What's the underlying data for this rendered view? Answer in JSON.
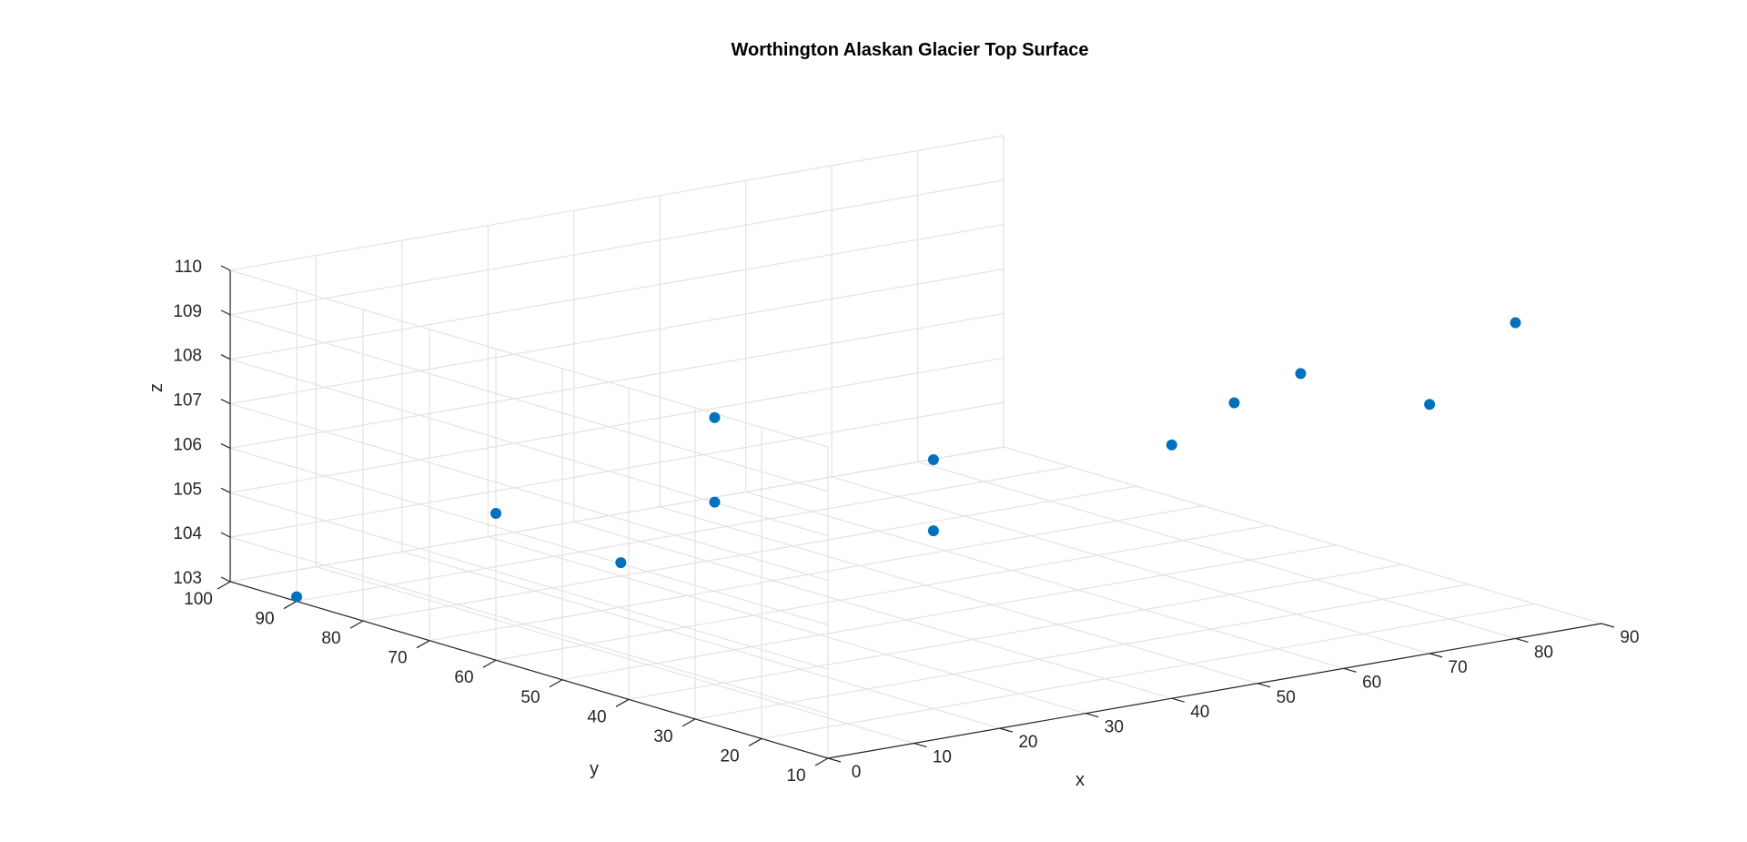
{
  "chart_data": {
    "type": "scatter3d",
    "title": "Worthington Alaskan Glacier Top Surface",
    "xlabel": "x",
    "ylabel": "y",
    "zlabel": "z",
    "xlim": [
      0,
      90
    ],
    "ylim": [
      10,
      100
    ],
    "zlim": [
      103,
      110
    ],
    "xticks": [
      0,
      10,
      20,
      30,
      40,
      50,
      60,
      70,
      80,
      90
    ],
    "yticks": [
      10,
      20,
      30,
      40,
      50,
      60,
      70,
      80,
      90,
      100
    ],
    "zticks": [
      103,
      104,
      105,
      106,
      107,
      108,
      109,
      110
    ],
    "grid": true,
    "marker_color": "#0072bd",
    "points": [
      {
        "x": 0,
        "y": 90,
        "z": 103.1
      },
      {
        "x": 0,
        "y": 60,
        "z": 106.3
      },
      {
        "x": 10,
        "y": 40,
        "z": 107.1
      },
      {
        "x": 10,
        "y": 40,
        "z": 109.0
      },
      {
        "x": 20,
        "y": 20,
        "z": 107.0
      },
      {
        "x": 20,
        "y": 20,
        "z": 108.6
      },
      {
        "x": 40,
        "y": 10,
        "z": 108.7
      },
      {
        "x": 55,
        "y": 10,
        "z": 109.8
      },
      {
        "x": 55,
        "y": 20,
        "z": 108.7
      },
      {
        "x": 70,
        "y": 10,
        "z": 108.6
      },
      {
        "x": 80,
        "y": 10,
        "z": 110.1
      },
      {
        "x": 30,
        "y": 80,
        "z": 103.3
      }
    ]
  }
}
